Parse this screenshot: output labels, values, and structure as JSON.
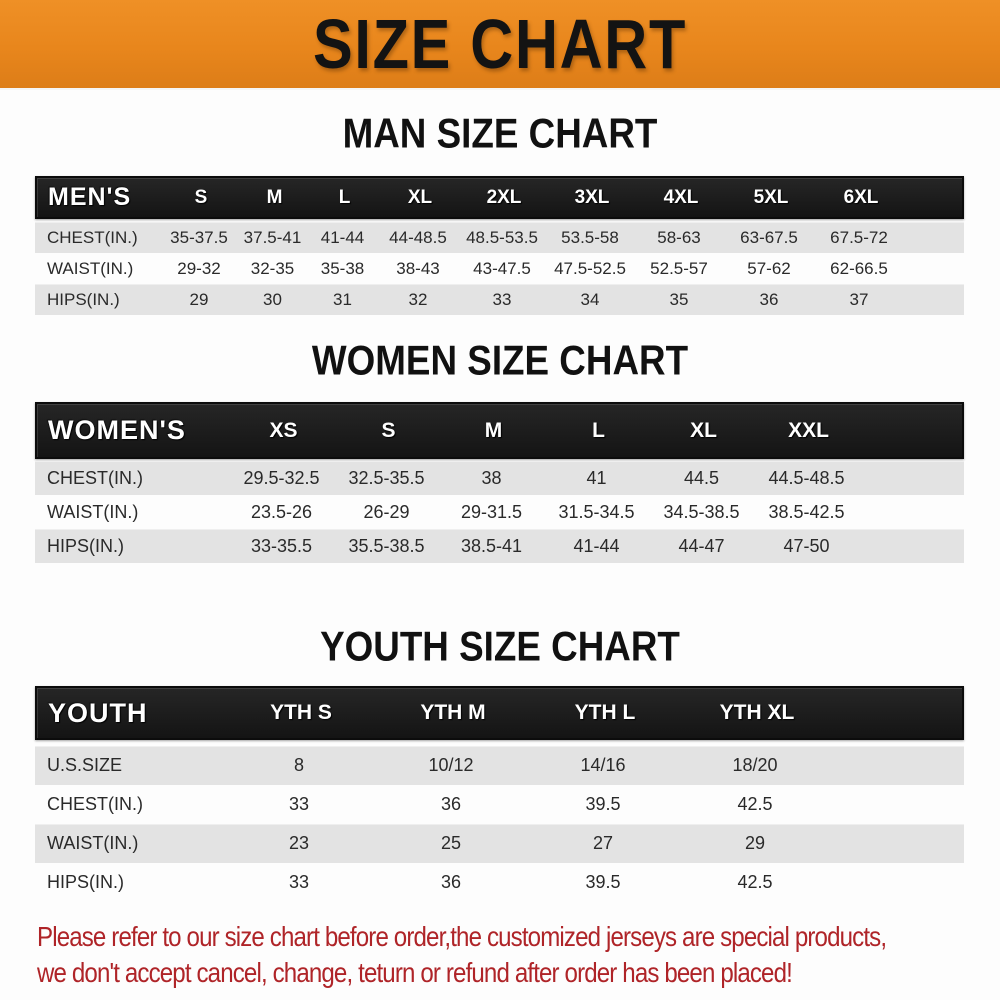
{
  "banner": {
    "title": "SIZE CHART",
    "bg_color": "#E8861C",
    "text_color": "#131313"
  },
  "sections": [
    {
      "heading": "MAN SIZE CHART",
      "table": {
        "header_label": "MEN'S",
        "columns": [
          "S",
          "M",
          "L",
          "XL",
          "2XL",
          "3XL",
          "4XL",
          "5XL",
          "6XL"
        ],
        "rows": [
          {
            "label": "CHEST(IN.)",
            "values": [
              "35-37.5",
              "37.5-41",
              "41-44",
              "44-48.5",
              "48.5-53.5",
              "53.5-58",
              "58-63",
              "63-67.5",
              "67.5-72"
            ]
          },
          {
            "label": "WAIST(IN.)",
            "values": [
              "29-32",
              "32-35",
              "35-38",
              "38-43",
              "43-47.5",
              "47.5-52.5",
              "52.5-57",
              "57-62",
              "62-66.5"
            ]
          },
          {
            "label": "HIPS(IN.)",
            "values": [
              "29",
              "30",
              "31",
              "32",
              "33",
              "34",
              "35",
              "36",
              "37"
            ]
          }
        ]
      }
    },
    {
      "heading": "WOMEN SIZE CHART",
      "table": {
        "header_label": "WOMEN'S",
        "columns": [
          "XS",
          "S",
          "M",
          "L",
          "XL",
          "XXL"
        ],
        "rows": [
          {
            "label": "CHEST(IN.)",
            "values": [
              "29.5-32.5",
              "32.5-35.5",
              "38",
              "41",
              "44.5",
              "44.5-48.5"
            ]
          },
          {
            "label": "WAIST(IN.)",
            "values": [
              "23.5-26",
              "26-29",
              "29-31.5",
              "31.5-34.5",
              "34.5-38.5",
              "38.5-42.5"
            ]
          },
          {
            "label": "HIPS(IN.)",
            "values": [
              "33-35.5",
              "35.5-38.5",
              "38.5-41",
              "41-44",
              "44-47",
              "47-50"
            ]
          }
        ]
      }
    },
    {
      "heading": "YOUTH SIZE CHART",
      "table": {
        "header_label": "YOUTH",
        "columns": [
          "YTH S",
          "YTH M",
          "YTH L",
          "YTH XL"
        ],
        "rows": [
          {
            "label": "U.S.SIZE",
            "values": [
              "8",
              "10/12",
              "14/16",
              "18/20"
            ]
          },
          {
            "label": "CHEST(IN.)",
            "values": [
              "33",
              "36",
              "39.5",
              "42.5"
            ]
          },
          {
            "label": "WAIST(IN.)",
            "values": [
              "23",
              "25",
              "27",
              "29"
            ]
          },
          {
            "label": "HIPS(IN.)",
            "values": [
              "33",
              "36",
              "39.5",
              "42.5"
            ]
          }
        ]
      }
    }
  ],
  "footer_note": {
    "line1": "Please refer to our size chart before order,the customized jerseys are special products,",
    "line2": "we don't accept cancel, change, teturn or refund after order has been placed!",
    "color": "#AF2428"
  },
  "colors": {
    "banner_orange": "#E8861C",
    "header_black": "#1A1A1A",
    "row_gray": "#E3E3E3",
    "note_red": "#AF2428"
  }
}
